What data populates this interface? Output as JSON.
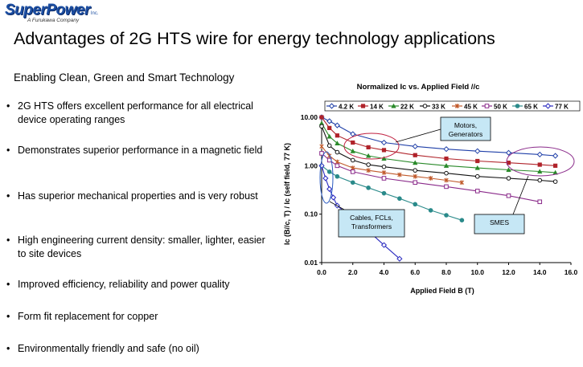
{
  "header": {
    "logo_text": "SuperPower",
    "logo_inc": "Inc.",
    "logo_tagline": "A Furukawa Company",
    "title": "Advantages of 2G HTS wire for energy technology applications",
    "subtitle": "Enabling Clean, Green and Smart Technology"
  },
  "bullets": [
    "2G HTS offers excellent performance for all electrical device operating ranges",
    "Demonstrates superior performance in a magnetic field",
    "Has superior mechanical properties and is very robust",
    "High engineering current density: smaller, lighter, easier to site devices",
    "Improved efficiency, reliability and power quality",
    "Form fit replacement for copper",
    "Environmentally friendly and safe (no oil)"
  ],
  "bullet_glyph": "•",
  "chart_data": {
    "type": "line",
    "title": "Normalized Ic vs. Applied Field //c",
    "xlabel": "Applied Field B (T)",
    "ylabel": "Ic (B//c, T) / Ic (self field, 77 K)",
    "xlim": [
      0,
      16
    ],
    "ylim": [
      0.01,
      10
    ],
    "yscale": "log",
    "x_ticks": [
      "0.0",
      "2.0",
      "4.0",
      "6.0",
      "8.0",
      "10.0",
      "12.0",
      "14.0",
      "16.0"
    ],
    "y_ticks": [
      "10.00",
      "1.00",
      "0.10",
      "0.01"
    ],
    "legend_position": "top",
    "series": [
      {
        "name": "4.2 K",
        "color": "#1f3fa8",
        "marker": "diamond",
        "x": [
          0,
          0.5,
          1,
          2,
          4,
          6,
          8,
          10,
          12,
          14,
          15
        ],
        "y": [
          10,
          8.3,
          6.8,
          4.5,
          3.0,
          2.5,
          2.2,
          2.0,
          1.85,
          1.7,
          1.6
        ]
      },
      {
        "name": "14 K",
        "color": "#b0232a",
        "marker": "square",
        "x": [
          0,
          0.5,
          1,
          2,
          3,
          4,
          6,
          8,
          10,
          12,
          14,
          15
        ],
        "y": [
          10,
          6.0,
          4.2,
          3.0,
          2.4,
          2.1,
          1.65,
          1.4,
          1.25,
          1.15,
          1.05,
          1.0
        ]
      },
      {
        "name": "22 K",
        "color": "#2a8a2a",
        "marker": "triangle",
        "x": [
          0,
          0.5,
          1,
          2,
          3,
          4,
          6,
          8,
          10,
          12,
          14,
          15
        ],
        "y": [
          7.5,
          4.0,
          2.9,
          2.0,
          1.6,
          1.4,
          1.15,
          1.0,
          0.9,
          0.82,
          0.76,
          0.72
        ]
      },
      {
        "name": "33 K",
        "color": "#111111",
        "marker": "circle",
        "x": [
          0,
          0.5,
          1,
          2,
          3,
          4,
          6,
          8,
          10,
          12,
          14,
          15
        ],
        "y": [
          6.5,
          2.6,
          1.9,
          1.3,
          1.05,
          0.95,
          0.8,
          0.7,
          0.6,
          0.55,
          0.5,
          0.47
        ]
      },
      {
        "name": "45 K",
        "color": "#c0592a",
        "marker": "star",
        "x": [
          0,
          0.5,
          1,
          2,
          3,
          4,
          5,
          6,
          7,
          8,
          9
        ],
        "y": [
          2.5,
          1.6,
          1.2,
          0.9,
          0.8,
          0.72,
          0.65,
          0.6,
          0.55,
          0.5,
          0.45
        ]
      },
      {
        "name": "50 K",
        "color": "#8a2a8a",
        "marker": "square-open",
        "x": [
          0,
          0.5,
          1,
          2,
          4,
          6,
          8,
          10,
          12,
          14
        ],
        "y": [
          1.8,
          1.3,
          1.0,
          0.75,
          0.55,
          0.45,
          0.37,
          0.3,
          0.24,
          0.18
        ]
      },
      {
        "name": "65 K",
        "color": "#2a8a8a",
        "marker": "circle",
        "x": [
          0,
          0.5,
          1,
          2,
          3,
          4,
          5,
          6,
          7,
          8,
          9
        ],
        "y": [
          1.0,
          0.75,
          0.6,
          0.45,
          0.35,
          0.27,
          0.21,
          0.16,
          0.12,
          0.095,
          0.075
        ]
      },
      {
        "name": "77 K",
        "color": "#2a2ac0",
        "marker": "diamond",
        "x": [
          0,
          0.25,
          0.5,
          0.75,
          1,
          2,
          3,
          4,
          5
        ],
        "y": [
          1.0,
          0.55,
          0.33,
          0.22,
          0.15,
          0.08,
          0.045,
          0.023,
          0.012
        ]
      }
    ],
    "annotations": [
      {
        "id": "motors",
        "label": [
          "Motors,",
          "Generators"
        ]
      },
      {
        "id": "cables",
        "label": [
          "Cables, FCLs,",
          "Transformers"
        ]
      },
      {
        "id": "smes",
        "label": [
          "SMES"
        ]
      }
    ]
  }
}
